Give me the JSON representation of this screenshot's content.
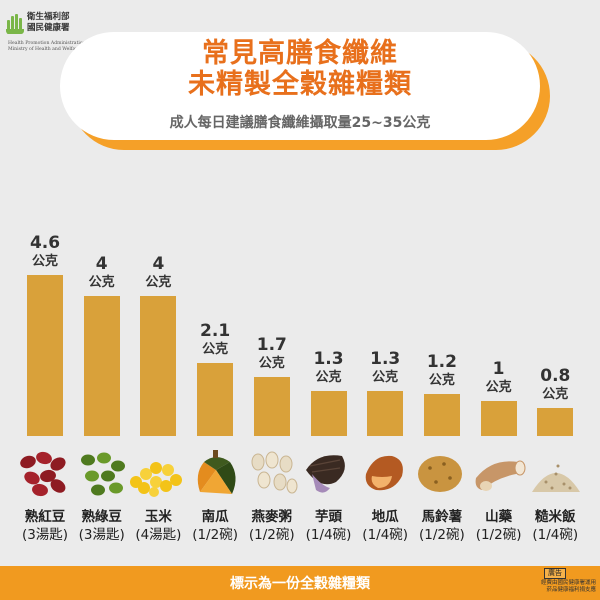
{
  "logo": {
    "name_zh": "衛生福利部\n國民健康署",
    "name_en": "Health Promotion Administration,\nMinistry of Health and Welfare"
  },
  "header": {
    "title_line1": "常見高膳食纖維",
    "title_line2": "未精製全穀雜糧類",
    "subtitle": "成人每日建議膳食纖維攝取量25~35公克"
  },
  "chart_data": {
    "type": "bar",
    "title": "常見高膳食纖維 未精製全穀雜糧類",
    "subtitle": "成人每日建議膳食纖維攝取量25~35公克",
    "unit": "公克",
    "categories": [
      "熟紅豆",
      "熟綠豆",
      "玉米",
      "南瓜",
      "燕麥粥",
      "芋頭",
      "地瓜",
      "馬鈴薯",
      "山藥",
      "糙米飯"
    ],
    "portions": [
      "(3湯匙)",
      "(3湯匙)",
      "(4湯匙)",
      "(1/2碗)",
      "(1/2碗)",
      "(1/4碗)",
      "(1/4碗)",
      "(1/2碗)",
      "(1/2碗)",
      "(1/4碗)"
    ],
    "values": [
      4.6,
      4,
      4,
      2.1,
      1.7,
      1.3,
      1.3,
      1.2,
      1,
      0.8
    ],
    "value_labels": [
      "4.6",
      "4",
      "4",
      "2.1",
      "1.7",
      "1.3",
      "1.3",
      "1.2",
      "1",
      "0.8"
    ],
    "bar_color": "#d9a13a",
    "grid": false,
    "legend": "none"
  },
  "foods": [
    {
      "icon": "red-bean-icon"
    },
    {
      "icon": "mung-bean-icon"
    },
    {
      "icon": "corn-kernels-icon"
    },
    {
      "icon": "pumpkin-icon"
    },
    {
      "icon": "oats-icon"
    },
    {
      "icon": "taro-icon"
    },
    {
      "icon": "sweet-potato-icon"
    },
    {
      "icon": "potato-icon"
    },
    {
      "icon": "yam-icon"
    },
    {
      "icon": "brown-rice-icon"
    }
  ],
  "footer": {
    "note": "標示為一份全穀雜糧類",
    "ad_badge": "廣告",
    "ad_note": "經費由國民健康署運用\n菸品健康福利捐支應"
  },
  "colors": {
    "background": "#ebebeb",
    "title": "#e8701c",
    "accent": "#f19a1f",
    "bar": "#d9a13a"
  }
}
